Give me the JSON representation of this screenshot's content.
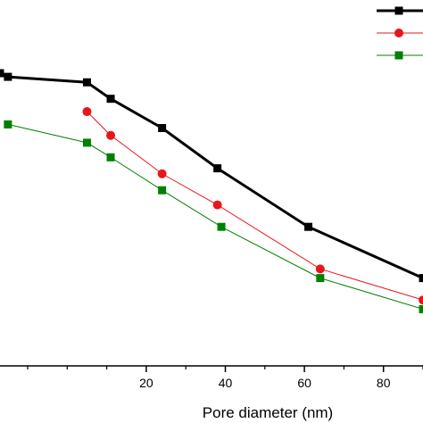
{
  "chart_data": {
    "type": "line",
    "xlabel": "Pore diameter (nm)",
    "ylabel": "",
    "title": "",
    "xlim": [
      -17,
      90
    ],
    "ylim": [
      0,
      1
    ],
    "x_ticks": [
      20,
      40,
      60,
      80
    ],
    "grid": false,
    "legend_placement": "top-right",
    "series": [
      {
        "color": "#000000",
        "marker": "square",
        "x": [
          -17,
          -15,
          5,
          11,
          24,
          38,
          61,
          90
        ],
        "y": [
          0.8,
          0.79,
          0.775,
          0.73,
          0.65,
          0.54,
          0.38,
          0.24
        ]
      },
      {
        "color": "#e8151b",
        "marker": "circle",
        "x": [
          5,
          11,
          24,
          38,
          64,
          90
        ],
        "y": [
          0.695,
          0.63,
          0.525,
          0.44,
          0.265,
          0.18
        ]
      },
      {
        "color": "#008000",
        "marker": "square",
        "x": [
          -15,
          5,
          11,
          24,
          39,
          64,
          90
        ],
        "y": [
          0.66,
          0.61,
          0.57,
          0.48,
          0.38,
          0.24,
          0.155
        ]
      }
    ]
  }
}
